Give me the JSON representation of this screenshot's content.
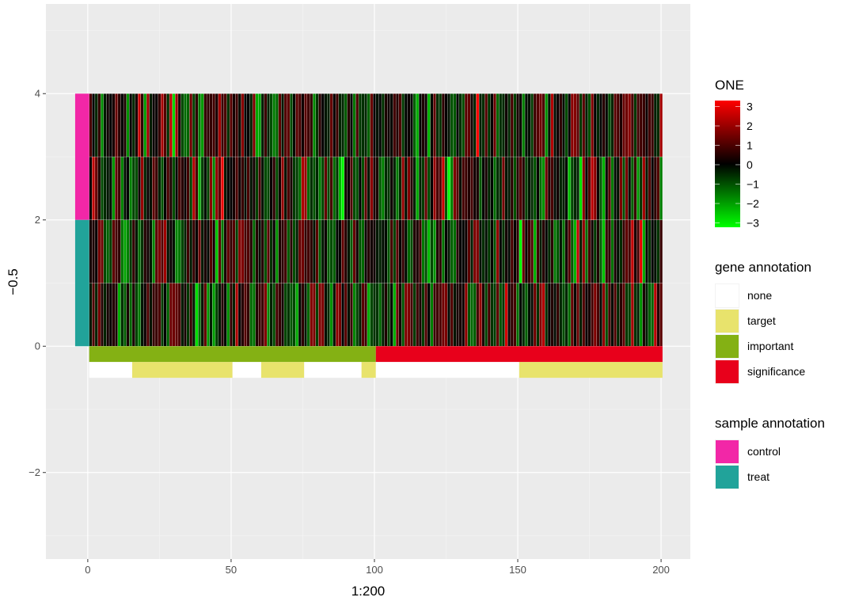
{
  "chart_data": {
    "type": "heatmap",
    "xlabel": "1:200",
    "ylabel": "−0.5",
    "xlim": [
      -14.6,
      210.2
    ],
    "ylim": [
      -3.37,
      5.42
    ],
    "x_ticks": [
      0,
      50,
      100,
      150,
      200
    ],
    "y_ticks": [
      -2,
      0,
      2,
      4
    ],
    "grid": true,
    "heatmap": {
      "columns": 200,
      "rows": 4,
      "value_range": [
        -3,
        3
      ],
      "note": "cell values are random noise between -3 and 3; not individually readable"
    },
    "color_legend": {
      "title": "ONE",
      "low_color": "#00ff00",
      "mid_color": "#000000",
      "high_color": "#ff0000",
      "ticks": [
        "3",
        "2",
        "1",
        "0",
        "−1",
        "−2",
        "−3"
      ],
      "tick_values": [
        3,
        2,
        1,
        0,
        -1,
        -2,
        -3
      ]
    },
    "gene_annotation": {
      "title": "gene annotation",
      "levels": [
        {
          "label": "none",
          "color": "#ffffff"
        },
        {
          "label": "target",
          "color": "#e8e36c"
        },
        {
          "label": "important",
          "color": "#84b114"
        },
        {
          "label": "significance",
          "color": "#e8001b"
        }
      ],
      "track1": [
        {
          "from": 1,
          "to": 100,
          "level": "important"
        },
        {
          "from": 101,
          "to": 200,
          "level": "significance"
        }
      ],
      "track2": [
        {
          "from": 1,
          "to": 15,
          "level": "none"
        },
        {
          "from": 16,
          "to": 50,
          "level": "target"
        },
        {
          "from": 51,
          "to": 60,
          "level": "none"
        },
        {
          "from": 61,
          "to": 75,
          "level": "target"
        },
        {
          "from": 76,
          "to": 95,
          "level": "none"
        },
        {
          "from": 96,
          "to": 100,
          "level": "target"
        },
        {
          "from": 101,
          "to": 150,
          "level": "none"
        },
        {
          "from": 151,
          "to": 200,
          "level": "target"
        }
      ]
    },
    "sample_annotation": {
      "title": "sample annotation",
      "levels": [
        {
          "label": "control",
          "color": "#f227a7"
        },
        {
          "label": "treat",
          "color": "#21a39a"
        }
      ],
      "segments": [
        {
          "from_y": 2,
          "to_y": 4,
          "level": "control"
        },
        {
          "from_y": 0,
          "to_y": 2,
          "level": "treat"
        }
      ]
    }
  }
}
